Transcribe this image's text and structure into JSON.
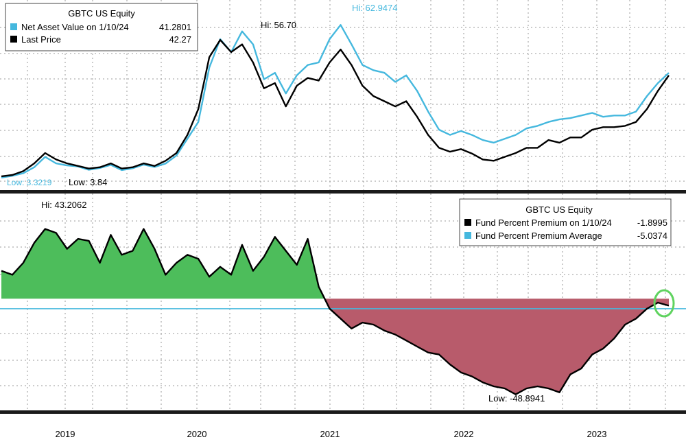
{
  "chart_data": [
    {
      "type": "line",
      "title": "GBTC US Equity",
      "legend_position": "top-left",
      "x_axis_labels": [
        "2019",
        "2020",
        "2021",
        "2022",
        "2023"
      ],
      "ylim": [
        0,
        70
      ],
      "series": [
        {
          "name": "Net Asset Value on 1/10/24",
          "value_label": "41.2801",
          "color": "#45b8de",
          "values": [
            3.5,
            4.2,
            5.2,
            7.5,
            11.5,
            9,
            8.2,
            7.8,
            6.5,
            7.2,
            8.4,
            6.4,
            7.1,
            8.5,
            7.6,
            8.9,
            12,
            18.5,
            25,
            46,
            57,
            52,
            60,
            55,
            41.5,
            44,
            36,
            43,
            47,
            48,
            57,
            62.5,
            55,
            47,
            45,
            44,
            40.5,
            43,
            37,
            29,
            22,
            20,
            21.5,
            20,
            18,
            17,
            18.5,
            20,
            22.5,
            23.5,
            25,
            26,
            26.5,
            27.5,
            28.5,
            27,
            27.5,
            27.5,
            29,
            35,
            40,
            44
          ],
          "annotations": [
            {
              "label": "Hi: 62.9474"
            },
            {
              "label": "Low: 3.3219"
            }
          ]
        },
        {
          "name": "Last Price",
          "value_label": "42.27",
          "color": "#000000",
          "values": [
            4,
            4.5,
            6,
            9,
            13,
            10.5,
            9,
            8,
            7,
            7.5,
            9,
            7,
            7.5,
            9,
            8,
            10,
            13,
            20,
            30,
            50,
            56.7,
            52,
            55,
            48,
            38,
            40,
            31,
            39,
            42,
            41,
            48,
            53,
            47,
            39,
            35,
            33,
            31,
            33,
            27,
            20,
            15,
            13.5,
            14.5,
            12.8,
            10.5,
            10,
            11.5,
            13,
            15,
            15,
            18,
            17,
            19,
            19,
            22,
            23,
            23,
            23.5,
            25,
            30,
            37,
            43
          ],
          "annotations": [
            {
              "label": "Hi: 56.70"
            },
            {
              "label": "Low: 3.84"
            }
          ]
        }
      ]
    },
    {
      "type": "area",
      "title": "GBTC US Equity",
      "legend_position": "top-right",
      "x_axis_labels": [
        "2019",
        "2020",
        "2021",
        "2022",
        "2023"
      ],
      "ylim": [
        -55,
        50
      ],
      "series": [
        {
          "name": "Fund Percent Premium on 1/10/24",
          "value_label": "-1.8995",
          "color": "#000000",
          "fill_positive": "#4dbd5b",
          "fill_negative": "#b85b6b",
          "values": [
            14,
            12,
            18,
            28,
            35,
            33,
            25,
            30,
            29,
            18,
            32,
            22,
            24,
            35,
            25,
            12,
            18,
            22,
            20,
            11,
            16,
            12,
            27,
            14,
            21,
            31,
            24,
            17,
            30,
            6,
            -5,
            -10,
            -15,
            -12,
            -13,
            -16,
            -18,
            -21,
            -24,
            -27,
            -28,
            -33,
            -37,
            -39,
            -42,
            -44,
            -45,
            -48,
            -45,
            -44,
            -45,
            -47,
            -38,
            -35,
            -28,
            -25,
            -20,
            -13,
            -10,
            -5,
            -2,
            -3.5
          ],
          "annotations": [
            {
              "label": "Hi: 43.2062"
            },
            {
              "label": "Low: -48.8941"
            }
          ]
        },
        {
          "name": "Fund Percent Premium Average",
          "value_label": "-5.0374",
          "color": "#45b8de",
          "constant_value": -5.0374
        }
      ]
    }
  ]
}
